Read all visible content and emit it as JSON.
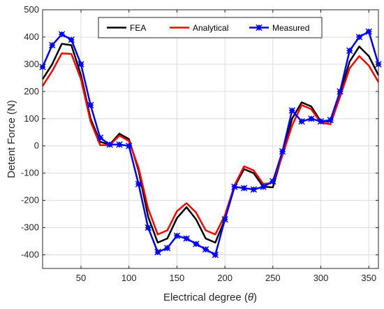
{
  "chart_data": {
    "type": "line",
    "xlabel": "Electrical degree",
    "xlabel_symbol": "θ",
    "ylabel": "Detent Force (N)",
    "xlim": [
      10,
      360
    ],
    "ylim": [
      -450,
      500
    ],
    "xticks": [
      50,
      100,
      150,
      200,
      250,
      300,
      350
    ],
    "yticks": [
      -400,
      -300,
      -200,
      -100,
      0,
      100,
      200,
      300,
      400,
      500
    ],
    "grid": true,
    "legend_position": "top-center",
    "x": [
      10,
      20,
      30,
      40,
      50,
      60,
      70,
      80,
      90,
      100,
      110,
      120,
      130,
      140,
      150,
      160,
      170,
      180,
      190,
      200,
      210,
      220,
      230,
      240,
      250,
      260,
      270,
      280,
      290,
      300,
      310,
      320,
      330,
      340,
      350,
      360
    ],
    "series": [
      {
        "name": "FEA",
        "color": "#000000",
        "marker": "none",
        "values": [
          245,
          300,
          375,
          370,
          260,
          100,
          15,
          5,
          45,
          25,
          -90,
          -260,
          -355,
          -340,
          -265,
          -225,
          -270,
          -340,
          -355,
          -270,
          -150,
          -85,
          -100,
          -150,
          -152,
          -30,
          100,
          160,
          145,
          90,
          90,
          190,
          310,
          365,
          330,
          260
        ]
      },
      {
        "name": "Analytical",
        "color": "#ff0000",
        "marker": "none",
        "values": [
          220,
          275,
          340,
          338,
          245,
          90,
          3,
          3,
          38,
          18,
          -80,
          -230,
          -325,
          -310,
          -240,
          -210,
          -245,
          -310,
          -325,
          -255,
          -145,
          -75,
          -90,
          -140,
          -135,
          -35,
          75,
          150,
          135,
          85,
          80,
          180,
          285,
          330,
          295,
          235
        ]
      },
      {
        "name": "Measured",
        "color": "#0000ff",
        "marker": "asterisk-square",
        "values": [
          290,
          370,
          410,
          390,
          300,
          150,
          30,
          5,
          5,
          0,
          -140,
          -300,
          -390,
          -375,
          -330,
          -340,
          -360,
          -380,
          -400,
          -270,
          -150,
          -155,
          -160,
          -150,
          -130,
          -20,
          130,
          90,
          100,
          90,
          95,
          200,
          350,
          400,
          420,
          300
        ]
      }
    ]
  }
}
